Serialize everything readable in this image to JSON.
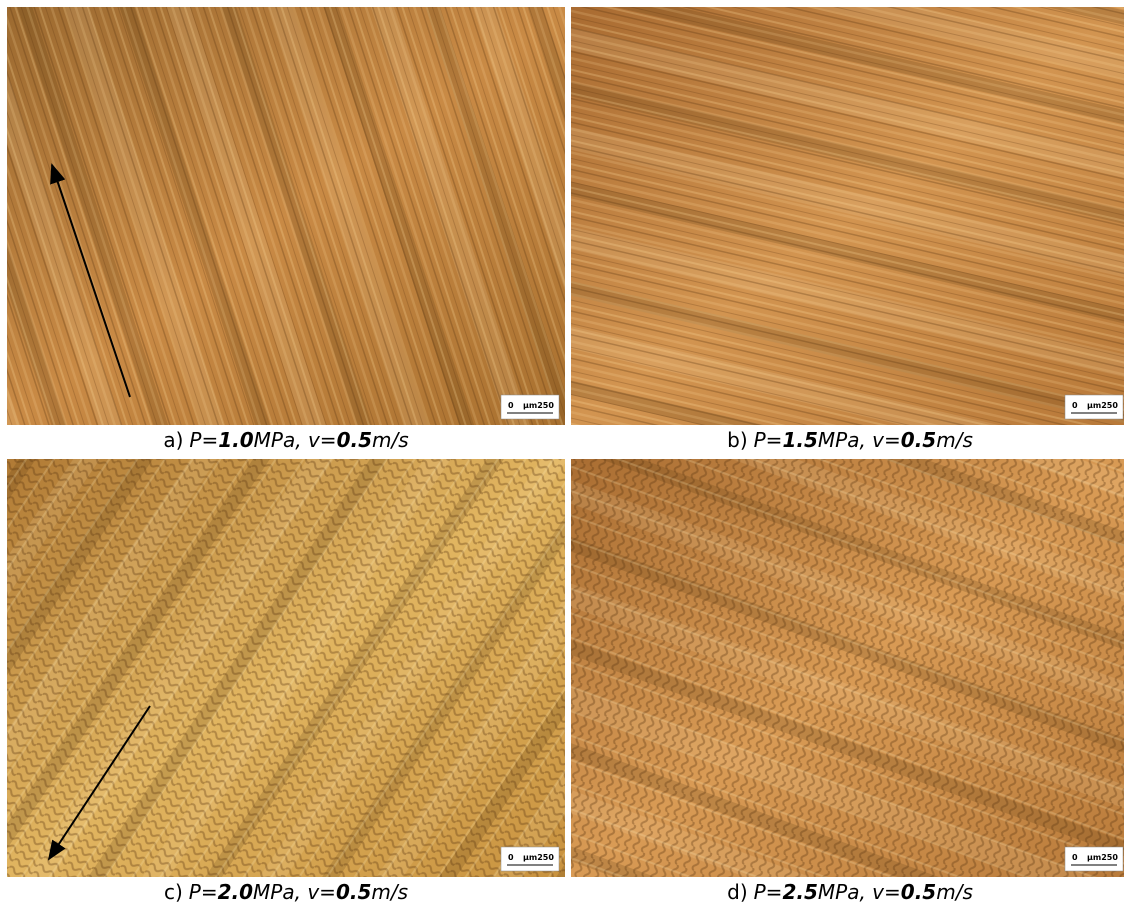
{
  "panels": [
    {
      "label": "a)",
      "pressure_prefix": "P=",
      "pressure": "1.0",
      "pressure_unit": "MPa, v=",
      "velocity": "0.5",
      "velocity_unit": "m/s",
      "scale_zero": "0",
      "scale_unit": "μm250"
    },
    {
      "label": "b)",
      "pressure_prefix": "P=",
      "pressure": "1.5",
      "pressure_unit": "MPa, v=",
      "velocity": "0.5",
      "velocity_unit": "m/s",
      "scale_zero": "0",
      "scale_unit": "μm250"
    },
    {
      "label": "c)",
      "pressure_prefix": "P=",
      "pressure": "2.0",
      "pressure_unit": "MPa, v=",
      "velocity": "0.5",
      "velocity_unit": "m/s",
      "scale_zero": "0",
      "scale_unit": "μm250"
    },
    {
      "label": "d)",
      "pressure_prefix": "P=",
      "pressure": "2.5",
      "pressure_unit": "MPa, v=",
      "velocity": "0.5",
      "velocity_unit": "m/s",
      "scale_zero": "0",
      "scale_unit": "μm250"
    }
  ]
}
